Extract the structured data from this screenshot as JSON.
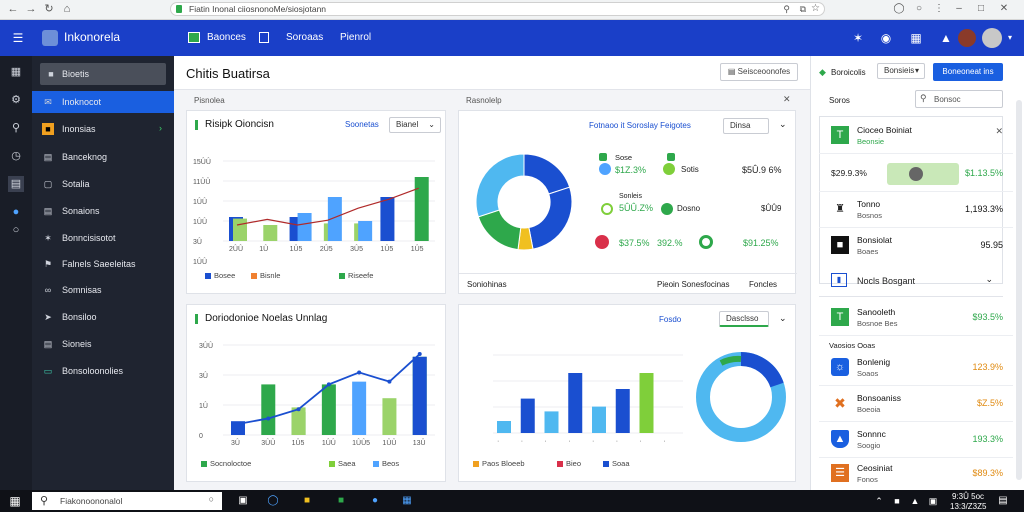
{
  "browser": {
    "url": "Fiatin Inonal ciiosnonoMe/siosjotann"
  },
  "header": {
    "app_name": "Inkonorela",
    "tabs": [
      "Baonces",
      "Soroaas",
      "Pienrol"
    ]
  },
  "sidebar": {
    "items": [
      {
        "label": "Bioetis",
        "icon": "grid-icon"
      },
      {
        "label": "Inoknocot",
        "icon": "mail-icon"
      },
      {
        "label": "Inonsias",
        "icon": "folder-icon"
      },
      {
        "label": "Banceknog",
        "icon": "document-icon"
      },
      {
        "label": "Sotalia",
        "icon": "document-icon"
      },
      {
        "label": "Sonaions",
        "icon": "list-icon"
      },
      {
        "label": "Bonncisisotot",
        "icon": "tools-icon"
      },
      {
        "label": "Falnels Saeeleitas",
        "icon": "tag-icon"
      },
      {
        "label": "Somnisas",
        "icon": "link-icon"
      },
      {
        "label": "Bonsiloo",
        "icon": "send-icon"
      },
      {
        "label": "Sioneis",
        "icon": "document-icon"
      },
      {
        "label": "Bonsoloonolies",
        "icon": "monitor-icon"
      }
    ]
  },
  "main": {
    "title": "Chitis Buatirsa",
    "export_label": "Seisceoonofes",
    "card1": {
      "header": "Pisnolea",
      "title": "Risipk Oioncisn",
      "filter_label": "Soonetas",
      "dropdown": "Bianel",
      "legend": [
        "Bosee",
        "Bisnle",
        "Riseefe"
      ]
    },
    "card2": {
      "header": "Rasnolelp",
      "title": "Fotnaoo it Soroslay Feigotes",
      "dropdown": "Dinsa",
      "stats": [
        {
          "label": "Sose",
          "value": "$1Z.3%"
        },
        {
          "label": "Sotis",
          "value": "$5Û.9 6%"
        },
        {
          "label": "Sonleis",
          "value": "5ÛÛ.Z%"
        },
        {
          "label": "Dosno",
          "value": "$ÛÛ9"
        },
        {
          "label": "",
          "value": "$37.5%"
        },
        {
          "label": "",
          "value": "392.%"
        },
        {
          "label": "",
          "value": "$91.25%"
        }
      ],
      "footer_left": "Soniohinas",
      "footer_mid": "Pieoin  Sonesfocinas",
      "footer_right": "Foncles"
    },
    "card3": {
      "title": "Doriodonioe Noelas Unnlag",
      "legend": [
        "Socnoloctoe",
        "Saea",
        "Beos"
      ]
    },
    "card4": {
      "filter_label": "Fosdo",
      "dropdown": "Dasclsso",
      "legend": [
        "Paos Bloeeb",
        "Bieo",
        "Soaa"
      ]
    }
  },
  "right": {
    "status": "Boroicolis",
    "dropdown1": "Bonsieis",
    "action_button": "Boneoneat ins",
    "section1": "Soros",
    "search_placeholder": "Bonsoc",
    "items1": [
      {
        "title": "Cioceo Boiniat",
        "sub": "Beonsie",
        "value": "",
        "icon": "t-icon"
      },
      {
        "title": "",
        "sub": "",
        "value": "$1.13.5%",
        "left": "$29.9.3%",
        "icon": "toggle-icon"
      },
      {
        "title": "Tonno",
        "sub": "Bosnos",
        "value": "1,193.3%",
        "icon": "tower-icon"
      },
      {
        "title": "Bonsiolat",
        "sub": "Boaes",
        "value": "95.95",
        "icon": "box-icon"
      }
    ],
    "section2": "Nocls Bosgant",
    "items2": [
      {
        "title": "Sanooleth",
        "sub": "Bosnoe Bes",
        "value": "$93.5%",
        "icon": "t-icon"
      },
      {
        "title": "Bonlenig",
        "sub": "Soaos",
        "value": "123.9%",
        "icon": "globe-icon"
      },
      {
        "title": "Bonsoaniss",
        "sub": "Boeoia",
        "value": "$Z.5%",
        "icon": "x-icon"
      },
      {
        "title": "Sonnnc",
        "sub": "Soogio",
        "value": "193.3%",
        "icon": "shield-icon"
      },
      {
        "title": "Ceosiniat",
        "sub": "Fonos",
        "value": "$89.3%",
        "icon": "stack-icon"
      }
    ],
    "sub_header": "Vaosios Ooas"
  },
  "taskbar": {
    "search_text": "Fiakonoononalol",
    "time": "9:3Û 5oc",
    "date": "13:3/Z3Z5"
  },
  "chart_data": [
    {
      "type": "bar",
      "title": "Risipk Oioncisn",
      "categories": [
        "2ÛÛ",
        "1Û",
        "1Û5",
        "2Û5",
        "3Û5",
        "1Û5",
        "1Û5"
      ],
      "yticks": [
        "15ÛÛ",
        "11ÛÛ",
        "1ÛÛ",
        "1ÛÛ",
        "3Û",
        "1ÛÛ",
        "5Û"
      ],
      "series": [
        {
          "name": "Bosee",
          "values": [
            30,
            0,
            30,
            0,
            0,
            55,
            0
          ]
        },
        {
          "name": "Bisnle",
          "values": [
            28,
            20,
            0,
            22,
            22,
            0,
            80
          ]
        },
        {
          "name": "Riseefe",
          "values": [
            0,
            0,
            35,
            55,
            25,
            0,
            0
          ]
        }
      ],
      "line": [
        20,
        27,
        20,
        26,
        41,
        52,
        66
      ]
    },
    {
      "type": "pie",
      "title": "Fotnaoo it Soroslay Feigotes",
      "values": [
        20,
        27,
        5,
        18,
        30
      ]
    },
    {
      "type": "bar",
      "title": "Doriodonioe Noelas Unnlag",
      "categories": [
        "3Û",
        "3ÛÛ",
        "1Û5",
        "1ÛÛ",
        "1ÛÛ5",
        "1ÛÛ",
        "13Û"
      ],
      "series": [
        {
          "name": "Socnoloctoe",
          "values": [
            15,
            55,
            25,
            55,
            0,
            0,
            85
          ]
        },
        {
          "name": "Saea",
          "values": [
            0,
            0,
            30,
            0,
            58,
            40,
            0
          ]
        }
      ],
      "line": [
        12,
        18,
        28,
        55,
        68,
        58,
        88
      ]
    },
    {
      "type": "bar",
      "categories": [
        "",
        "",
        "",
        "",
        "",
        "",
        "",
        ""
      ],
      "series": [
        {
          "name": "Paos Bloeeb",
          "values": [
            15,
            43,
            27,
            75,
            33,
            55,
            75,
            0
          ]
        },
        {
          "name": "Soaa",
          "values": [
            0,
            0,
            0,
            0,
            0,
            0,
            0,
            0
          ]
        }
      ]
    },
    {
      "type": "pie",
      "values": [
        100
      ]
    }
  ]
}
